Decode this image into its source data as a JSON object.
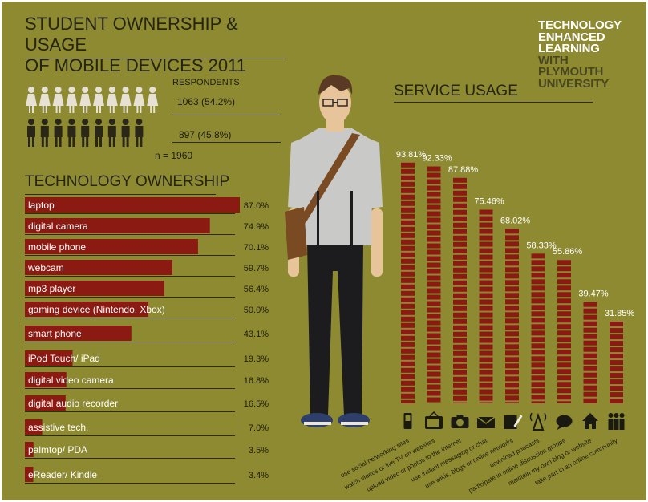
{
  "header": {
    "title_line1": "STUDENT OWNERSHIP & USAGE",
    "title_line2": "OF MOBILE DEVICES 2011"
  },
  "brand": {
    "line1": "TECHNOLOGY",
    "line2": "ENHANCED",
    "line3": "LEARNING",
    "line4": "WITH",
    "line5": "PLYMOUTH",
    "line6": "UNIVERSITY"
  },
  "respondents": {
    "label": "RESPONDENTS",
    "female": "1063 (54.2%)",
    "male": "897 (45.8%)",
    "total": "n = 1960",
    "icons": {
      "female": "female-figure-icon",
      "male": "male-figure-icon"
    },
    "colors": {
      "female": "#e6e1d2",
      "male": "#2a2718"
    }
  },
  "chart_data": [
    {
      "type": "bar",
      "title": "TECHNOLOGY OWNERSHIP",
      "orientation": "horizontal",
      "categories": [
        "laptop",
        "digital camera",
        "mobile phone",
        "webcam",
        "mp3 player",
        "gaming device (Nintendo, Xbox)",
        "smart phone",
        "iPod Touch/ iPad",
        "digital video camera",
        "digital audio recorder",
        "assistive tech.",
        "palmtop/ PDA",
        "eReader/ Kindle"
      ],
      "values": [
        87.0,
        74.9,
        70.1,
        59.7,
        56.4,
        50.0,
        43.1,
        19.3,
        16.8,
        16.5,
        7.0,
        3.5,
        3.4
      ],
      "value_labels": [
        "87.0%",
        "74.9%",
        "70.1%",
        "59.7%",
        "56.4%",
        "50.0%",
        "43.1%",
        "19.3%",
        "16.8%",
        "16.5%",
        "7.0%",
        "3.5%",
        "3.4%"
      ],
      "xlim": [
        0,
        100
      ],
      "color": "#8b1a12"
    },
    {
      "type": "bar",
      "title": "SERVICE USAGE",
      "orientation": "vertical",
      "categories": [
        "use social networking sites",
        "watch videos or live TV on websites",
        "upload video or photos to the internet",
        "use instant messaging or chat",
        "use wikis, blogs or online networks",
        "download podcasts",
        "participate in online discussion groups",
        "maintain my own blog or website",
        "take part in an online community"
      ],
      "values": [
        93.81,
        92.33,
        87.88,
        75.46,
        68.02,
        58.33,
        55.86,
        39.47,
        31.85
      ],
      "value_labels": [
        "93.81%",
        "92.33%",
        "87.88%",
        "75.46%",
        "68.02%",
        "58.33%",
        "55.86%",
        "39.47%",
        "31.85%"
      ],
      "icons": [
        "mobile-phone-icon",
        "tv-icon",
        "camera-icon",
        "envelope-icon",
        "pencil-icon",
        "broadcast-tower-icon",
        "speech-bubble-icon",
        "house-icon",
        "people-group-icon"
      ],
      "ylim": [
        0,
        100
      ],
      "color": "#8b1a12"
    }
  ],
  "colors": {
    "background": "#8e8a32",
    "bar": "#8b1a12",
    "text": "#262412"
  }
}
